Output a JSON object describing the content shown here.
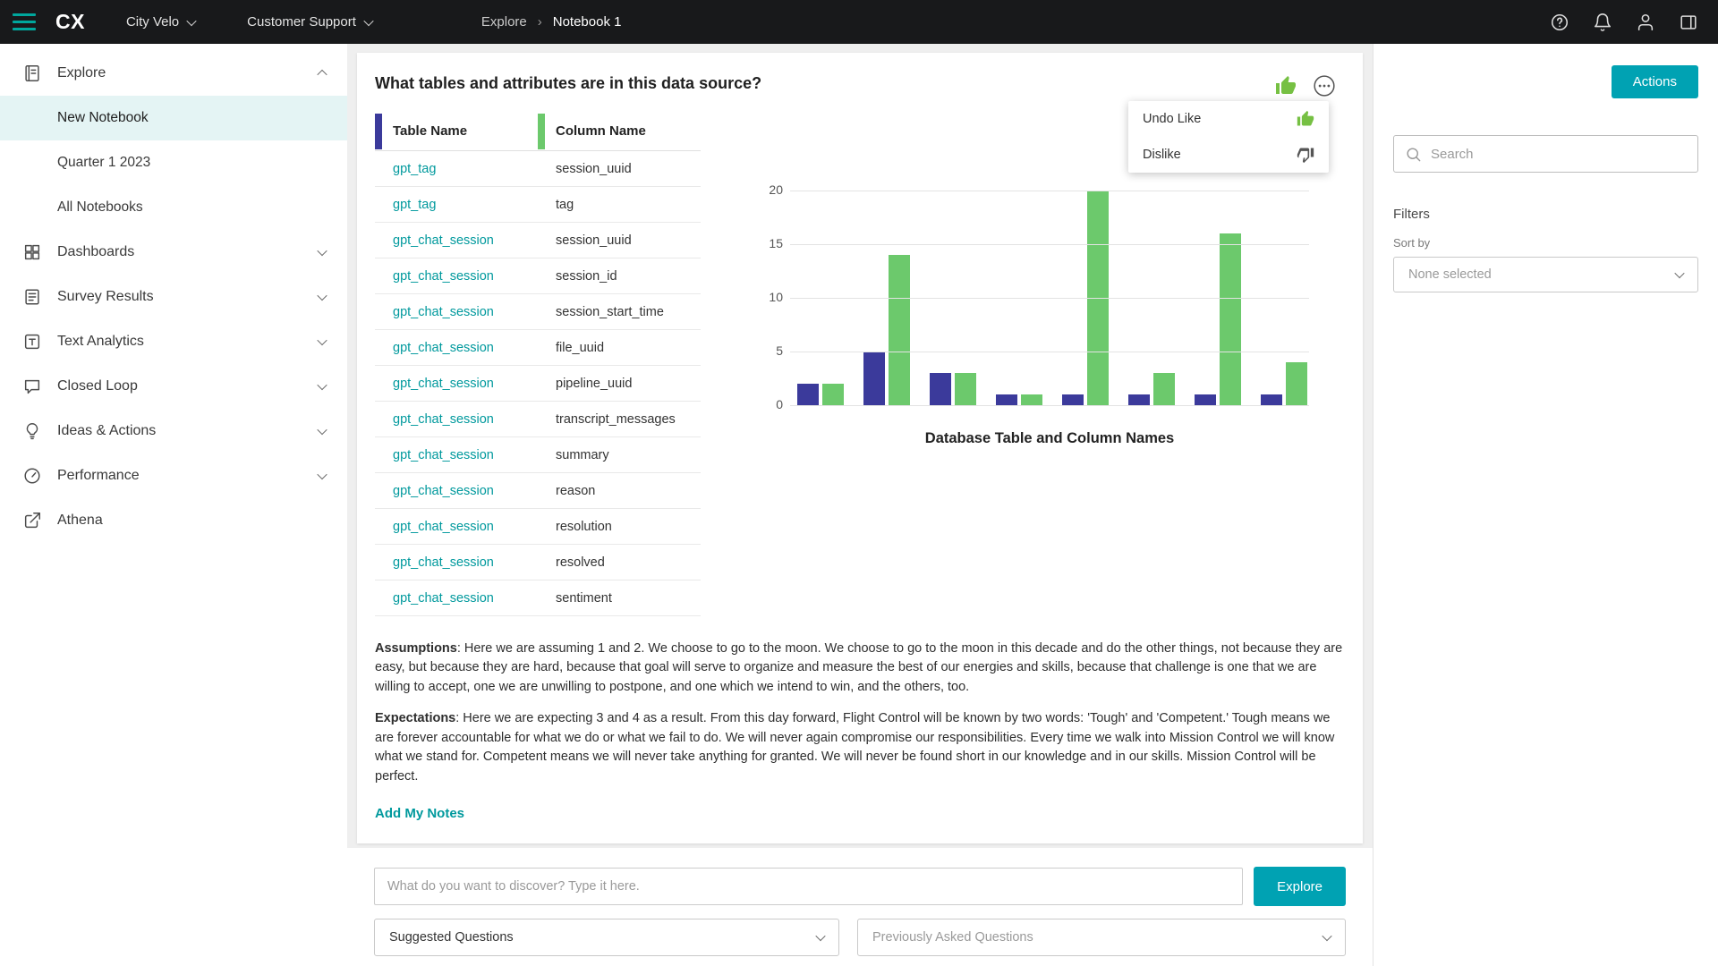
{
  "topbar": {
    "brand": "CX",
    "workspace": "City Velo",
    "section": "Customer Support",
    "breadcrumb": [
      "Explore",
      "Notebook 1"
    ]
  },
  "sidebar": {
    "items": [
      {
        "label": "Explore"
      },
      {
        "label": "New Notebook"
      },
      {
        "label": "Quarter 1 2023"
      },
      {
        "label": "All Notebooks"
      },
      {
        "label": "Dashboards"
      },
      {
        "label": "Survey Results"
      },
      {
        "label": "Text Analytics"
      },
      {
        "label": "Closed Loop"
      },
      {
        "label": "Ideas & Actions"
      },
      {
        "label": "Performance"
      },
      {
        "label": "Athena"
      }
    ]
  },
  "card": {
    "question": "What tables and attributes are in this data source?",
    "menu": {
      "items": [
        "Undo Like",
        "Dislike"
      ]
    },
    "table": {
      "headers": [
        "Table Name",
        "Column Name"
      ],
      "rows": [
        [
          "gpt_tag",
          "session_uuid"
        ],
        [
          "gpt_tag",
          "tag"
        ],
        [
          "gpt_chat_session",
          "session_uuid"
        ],
        [
          "gpt_chat_session",
          "session_id"
        ],
        [
          "gpt_chat_session",
          "session_start_time"
        ],
        [
          "gpt_chat_session",
          "file_uuid"
        ],
        [
          "gpt_chat_session",
          "pipeline_uuid"
        ],
        [
          "gpt_chat_session",
          "transcript_messages"
        ],
        [
          "gpt_chat_session",
          "summary"
        ],
        [
          "gpt_chat_session",
          "reason"
        ],
        [
          "gpt_chat_session",
          "resolution"
        ],
        [
          "gpt_chat_session",
          "resolved"
        ],
        [
          "gpt_chat_session",
          "sentiment"
        ]
      ]
    },
    "assumptions_label": "Assumptions",
    "assumptions_text": ": Here we are assuming 1 and 2. We choose to go to the moon. We choose to go to the moon in this decade and do the other things, not because they are easy, but because they are hard, because that goal will serve to organize and measure the best of our energies and skills, because that challenge is one that we are willing to accept, one we are unwilling to postpone, and one which we intend to win, and the others, too.",
    "expectations_label": "Expectations",
    "expectations_text": ": Here we are expecting 3 and 4 as a result. From this day forward, Flight Control will be known by two words: 'Tough' and 'Competent.' Tough means we are forever accountable for what we do or what we fail to do. We will never again compromise our responsibilities. Every time we walk into Mission Control we will know what we stand for. Competent means we will never take anything for granted. We will never be found short in our knowledge and in our skills. Mission Control will be perfect.",
    "add_notes": "Add My Notes"
  },
  "chart_data": {
    "type": "bar",
    "title": "Database Table and Column Names",
    "categories": [
      "",
      "",
      "",
      "",
      "",
      "",
      "",
      ""
    ],
    "series": [
      {
        "name": "Table Name",
        "color": "#3b3a9b",
        "values": [
          2,
          5,
          3,
          1,
          1,
          1,
          1,
          1
        ]
      },
      {
        "name": "Column Name",
        "color": "#6cc96c",
        "values": [
          2,
          14,
          3,
          1,
          20,
          3,
          16,
          4
        ]
      }
    ],
    "ylim": [
      0,
      20
    ],
    "yticks": [
      0,
      5,
      10,
      15,
      20
    ],
    "grid": true,
    "legend": "none"
  },
  "bottom": {
    "input_placeholder": "What do you want to discover? Type it here.",
    "explore_button": "Explore",
    "suggested_questions": "Suggested Questions",
    "previously_asked": "Previously Asked Questions"
  },
  "right_panel": {
    "actions_button": "Actions",
    "search_placeholder": "Search",
    "filters_label": "Filters",
    "sort_by_label": "Sort by",
    "sort_value": "None selected"
  },
  "colors": {
    "accent_teal": "#00a2b3",
    "link_teal": "#00999d",
    "bar_navy": "#3b3a9b",
    "bar_green": "#6cc96c",
    "like_green": "#76c043",
    "topbar_bg": "#18191b"
  }
}
